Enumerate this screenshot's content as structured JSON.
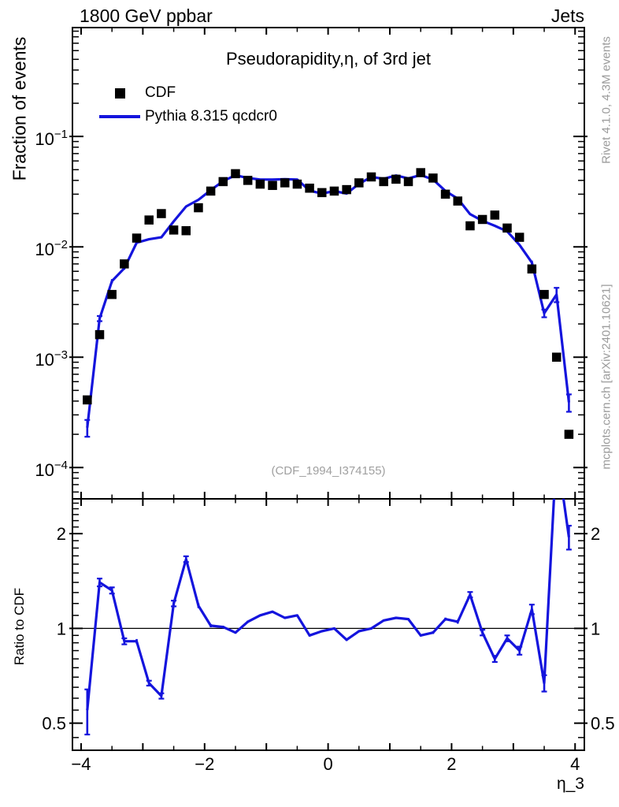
{
  "header": {
    "left": "1800 GeV ppbar",
    "right": "Jets"
  },
  "plot": {
    "title": "Pseudorapidity,η, of 3rd jet",
    "ylabel": "Fraction of events",
    "ratio_ylabel": "Ratio to CDF",
    "xlabel": "η_3",
    "watermark": "(CDF_1994_I374155)"
  },
  "legend": {
    "items": [
      {
        "label": "CDF",
        "marker": "black-square"
      },
      {
        "label": "Pythia 8.315 qcdcr0",
        "marker": "blue-line"
      }
    ]
  },
  "side_text": {
    "top_right": "Rivet 4.1.0,  4.3M events",
    "bottom_right": "mcplots.cern.ch [arXiv:2401.10621]"
  },
  "colors": {
    "pythia": "#1414dd",
    "cdf": "#000000",
    "gray_text": "#9b9b9b",
    "frame": "#000000"
  },
  "chart_data": {
    "type": "line",
    "title": "Pseudorapidity,η, of 3rd jet",
    "xlabel": "η_3",
    "bin_width": 0.2,
    "x_range": [
      -4.14,
      4.15
    ],
    "x_tick_labels": [
      {
        "v": -4,
        "t": "−4"
      },
      {
        "v": -2,
        "t": "−2"
      },
      {
        "v": 0,
        "t": "0"
      },
      {
        "v": 2,
        "t": "2"
      },
      {
        "v": 4,
        "t": "4"
      }
    ],
    "main_panel": {
      "yscale": "log",
      "ylim": [
        5.2e-05,
        0.97
      ],
      "ylabel": "Fraction of events",
      "y_tick_labels": [
        {
          "v": 0.1,
          "mant": "10",
          "exp": "−1"
        },
        {
          "v": 0.01,
          "mant": "10",
          "exp": "−2"
        },
        {
          "v": 0.001,
          "mant": "10",
          "exp": "−3"
        },
        {
          "v": 0.0001,
          "mant": "10",
          "exp": "−4"
        }
      ]
    },
    "ratio_panel": {
      "yscale": "log",
      "ylim": [
        0.41,
        2.58
      ],
      "ylabel": "Ratio to CDF",
      "unity_line": 1,
      "y_tick_labels": [
        {
          "v": 2,
          "t": "2"
        },
        {
          "v": 1,
          "t": "1"
        },
        {
          "v": 0.5,
          "t": "0.5"
        }
      ]
    },
    "eta": [
      -3.9,
      -3.7,
      -3.5,
      -3.3,
      -3.1,
      -2.9,
      -2.7,
      -2.5,
      -2.3,
      -2.1,
      -1.9,
      -1.7,
      -1.5,
      -1.3,
      -1.1,
      -0.9,
      -0.7,
      -0.5,
      -0.3,
      -0.1,
      0.1,
      0.3,
      0.5,
      0.7,
      0.9,
      1.1,
      1.3,
      1.5,
      1.7,
      1.9,
      2.1,
      2.3,
      2.5,
      2.7,
      2.9,
      3.1,
      3.3,
      3.5,
      3.7,
      3.9
    ],
    "series": [
      {
        "name": "CDF",
        "style": "black-squares",
        "values": [
          0.00041,
          0.0016,
          0.0037,
          0.007,
          0.012,
          0.0175,
          0.02,
          0.0142,
          0.014,
          0.0226,
          0.032,
          0.039,
          0.046,
          0.04,
          0.037,
          0.036,
          0.038,
          0.037,
          0.034,
          0.031,
          0.032,
          0.033,
          0.038,
          0.043,
          0.039,
          0.041,
          0.039,
          0.047,
          0.042,
          0.03,
          0.026,
          0.0155,
          0.0177,
          0.0194,
          0.0148,
          0.0122,
          0.0063,
          0.0037,
          0.001,
          0.0002
        ]
      },
      {
        "name": "Pythia 8.315 qcdcr0",
        "style": "blue-line",
        "values": [
          0.00023,
          0.00224,
          0.0049,
          0.0064,
          0.0109,
          0.0117,
          0.0122,
          0.017,
          0.0232,
          0.0267,
          0.0326,
          0.0394,
          0.0446,
          0.042,
          0.0407,
          0.0407,
          0.041,
          0.0407,
          0.0323,
          0.0304,
          0.032,
          0.0304,
          0.0372,
          0.043,
          0.0413,
          0.0443,
          0.0417,
          0.0447,
          0.0407,
          0.0321,
          0.0273,
          0.0198,
          0.0172,
          0.0155,
          0.0138,
          0.0104,
          0.0072,
          0.0025,
          0.0037,
          0.00039
        ],
        "errors": [
          4e-05,
          0.00012,
          0.0002,
          0.0002,
          0,
          0,
          0,
          0,
          0,
          0,
          0,
          0,
          0,
          0,
          0,
          0,
          0,
          0,
          0,
          0,
          0,
          0,
          0,
          0,
          0,
          0,
          0,
          0,
          0,
          0,
          0,
          0,
          0,
          0,
          0,
          0.0002,
          0.0003,
          0.0002,
          0.00055,
          7e-05
        ]
      }
    ],
    "ratio": {
      "label": "Ratio to CDF",
      "values": [
        0.55,
        1.4,
        1.32,
        0.91,
        0.91,
        0.67,
        0.61,
        1.2,
        1.66,
        1.18,
        1.02,
        1.01,
        0.97,
        1.05,
        1.1,
        1.13,
        1.08,
        1.1,
        0.95,
        0.98,
        1.0,
        0.92,
        0.98,
        1.0,
        1.06,
        1.08,
        1.07,
        0.95,
        0.97,
        1.07,
        1.05,
        1.28,
        0.97,
        0.8,
        0.93,
        0.85,
        1.15,
        0.67,
        3.7,
        1.95
      ],
      "errors": [
        0.09,
        0.04,
        0.03,
        0.02,
        0.015,
        0.012,
        0.012,
        0.025,
        0.035,
        0.02,
        0.012,
        0.01,
        0.008,
        0.008,
        0.008,
        0.008,
        0.008,
        0.008,
        0.008,
        0.008,
        0.008,
        0.008,
        0.008,
        0.008,
        0.008,
        0.008,
        0.008,
        0.008,
        0.01,
        0.012,
        0.015,
        0.025,
        0.02,
        0.018,
        0.02,
        0.025,
        0.04,
        0.04,
        0.45,
        0.17
      ]
    }
  }
}
